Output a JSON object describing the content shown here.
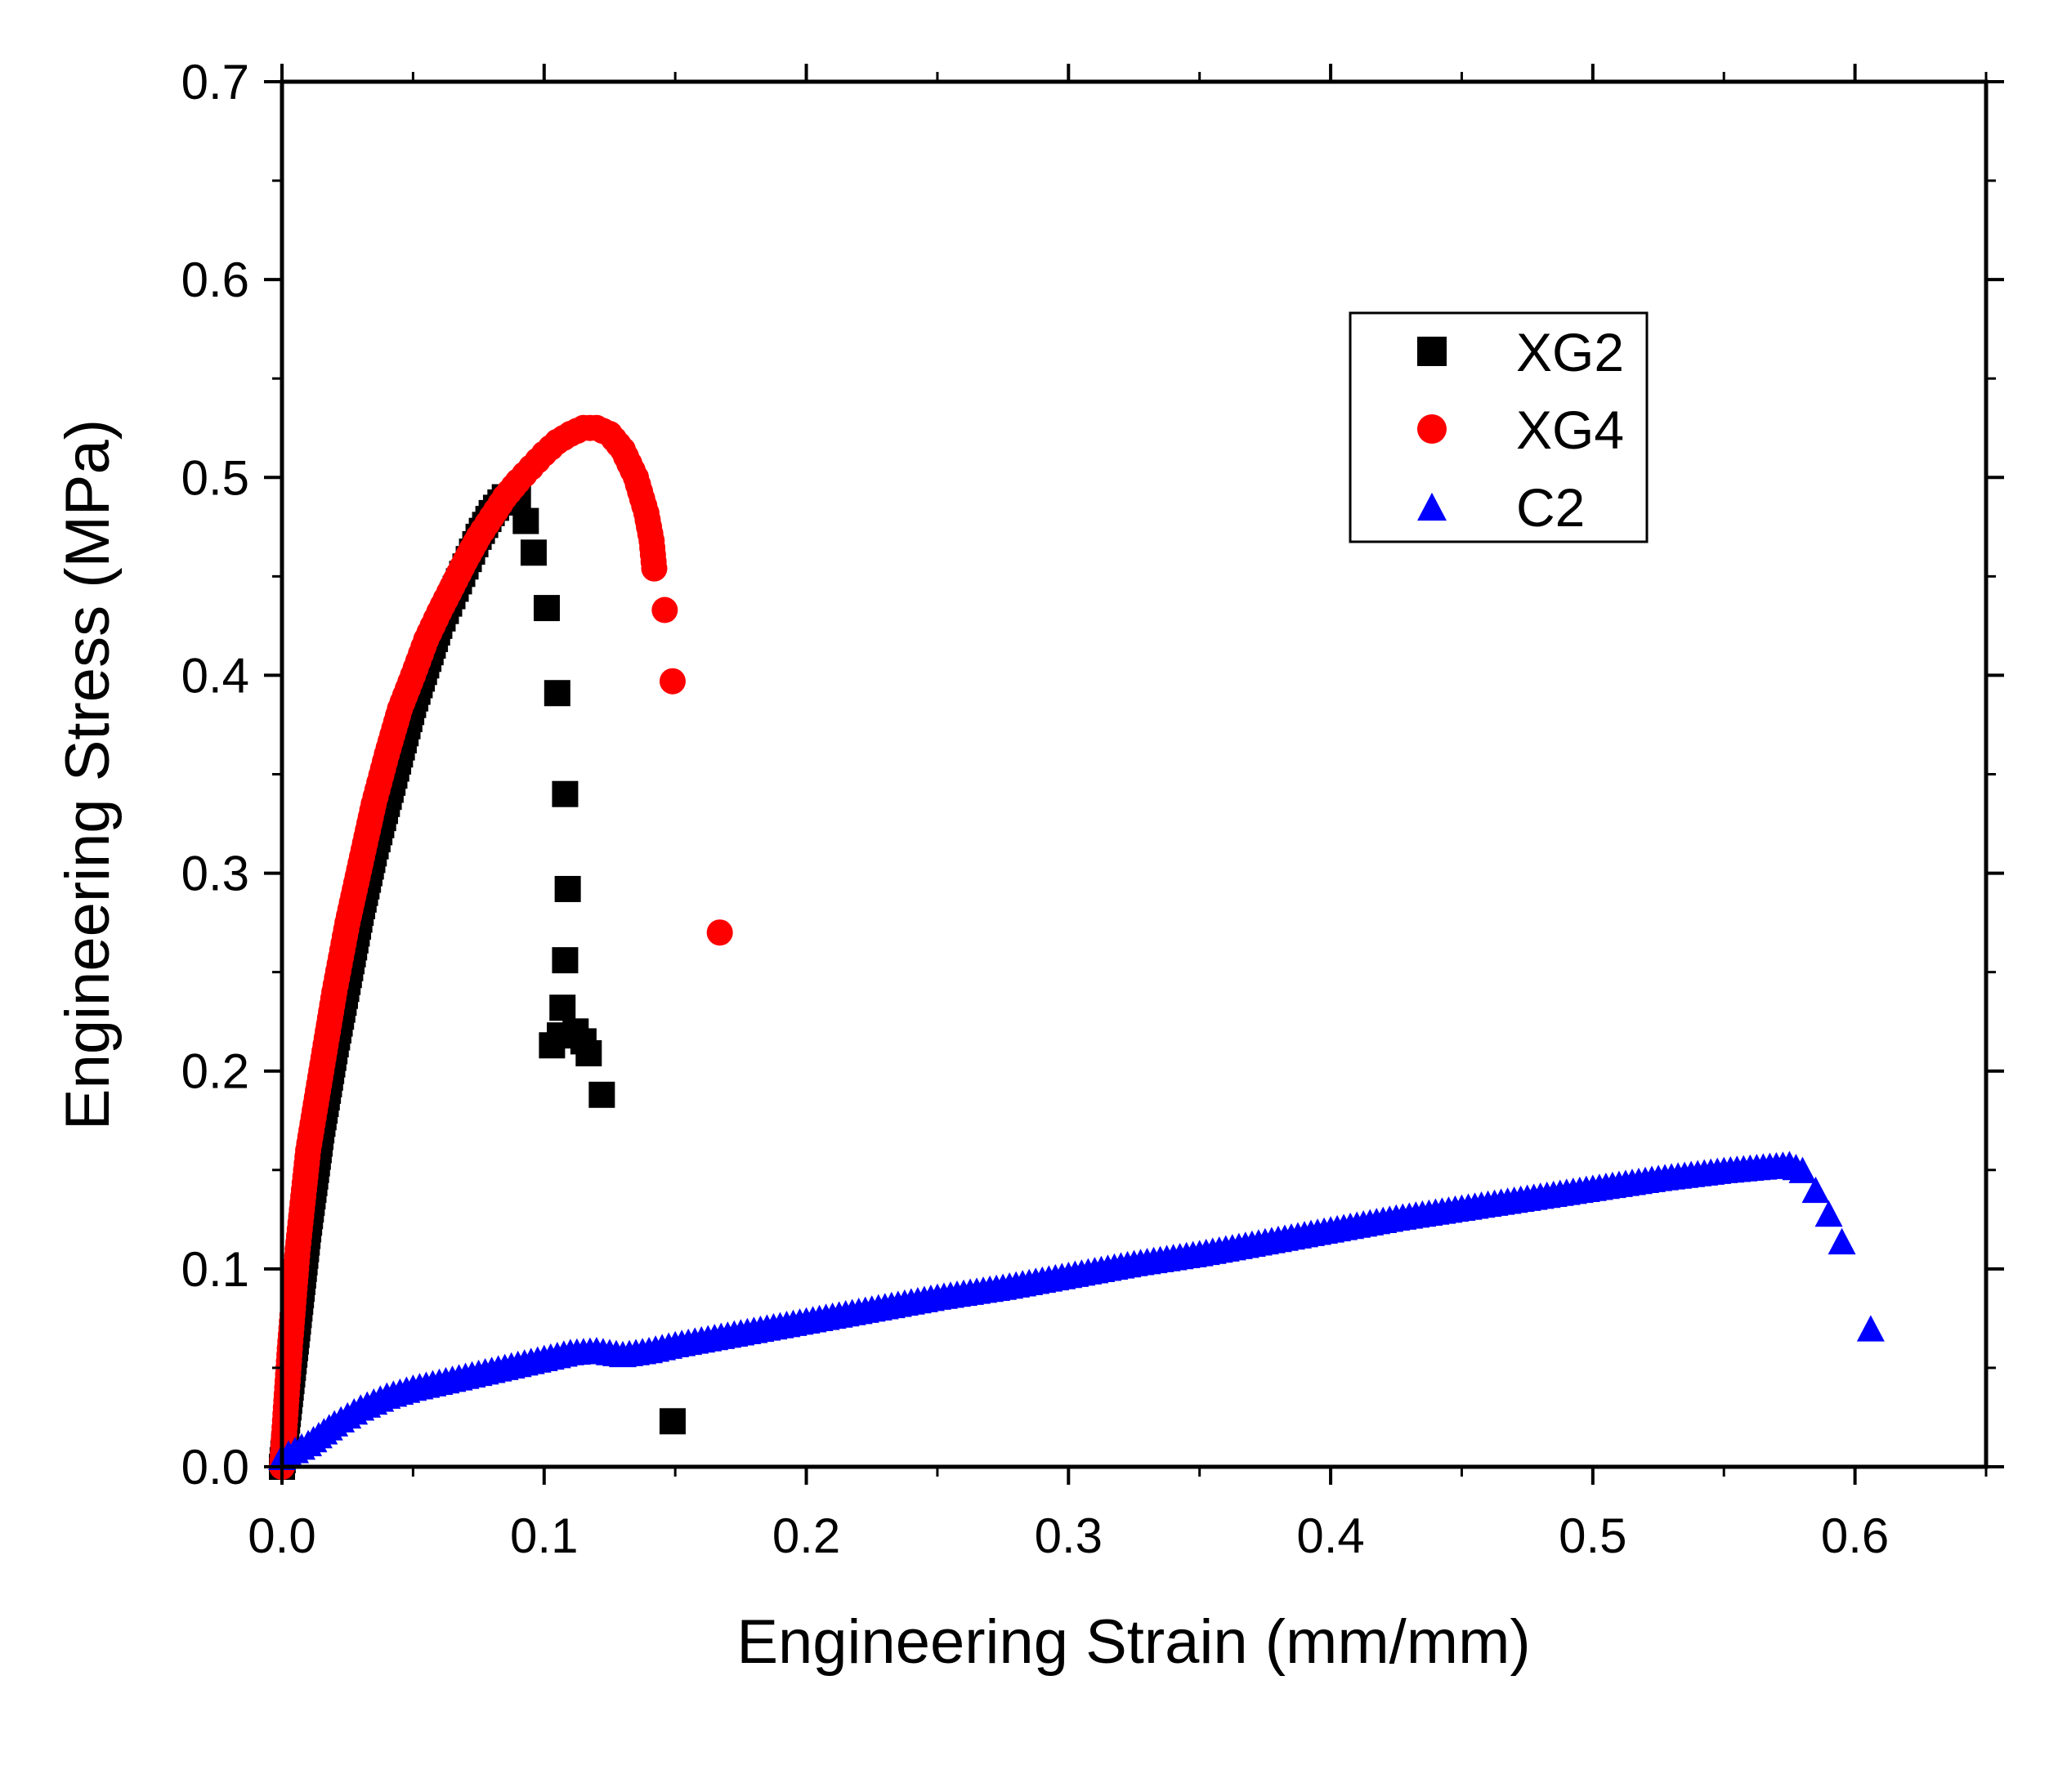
{
  "chart_data": {
    "type": "scatter",
    "title": "",
    "xlabel": "Engineering Strain (mm/mm)",
    "ylabel": "Engineering Stress (MPa)",
    "xlim": [
      0,
      0.65
    ],
    "ylim": [
      0,
      0.7
    ],
    "x_ticks": [
      0.0,
      0.1,
      0.2,
      0.3,
      0.4,
      0.5,
      0.6
    ],
    "x_tick_labels": [
      "0.0",
      "0.1",
      "0.2",
      "0.3",
      "0.4",
      "0.5",
      "0.6"
    ],
    "y_ticks": [
      0.0,
      0.1,
      0.2,
      0.3,
      0.4,
      0.5,
      0.6,
      0.7
    ],
    "y_tick_labels": [
      "0.0",
      "0.1",
      "0.2",
      "0.3",
      "0.4",
      "0.5",
      "0.6",
      "0.7"
    ],
    "grid": false,
    "legend_position": "top-right",
    "series": [
      {
        "name": "XG2",
        "marker": "square",
        "color": "#000000",
        "points": [
          [
            0.0,
            0.0
          ],
          [
            0.005,
            0.06
          ],
          [
            0.01,
            0.12
          ],
          [
            0.015,
            0.17
          ],
          [
            0.02,
            0.21
          ],
          [
            0.025,
            0.245
          ],
          [
            0.03,
            0.28
          ],
          [
            0.035,
            0.31
          ],
          [
            0.04,
            0.335
          ],
          [
            0.045,
            0.36
          ],
          [
            0.05,
            0.385
          ],
          [
            0.055,
            0.405
          ],
          [
            0.06,
            0.425
          ],
          [
            0.065,
            0.44
          ],
          [
            0.07,
            0.455
          ],
          [
            0.075,
            0.47
          ],
          [
            0.08,
            0.482
          ],
          [
            0.085,
            0.49
          ],
          [
            0.09,
            0.49
          ],
          [
            0.093,
            0.478
          ],
          [
            0.096,
            0.462
          ],
          [
            0.101,
            0.434
          ],
          [
            0.105,
            0.391
          ],
          [
            0.108,
            0.34
          ],
          [
            0.109,
            0.292
          ],
          [
            0.108,
            0.256
          ],
          [
            0.107,
            0.232
          ],
          [
            0.103,
            0.213
          ],
          [
            0.106,
            0.218
          ],
          [
            0.112,
            0.22
          ],
          [
            0.115,
            0.215
          ],
          [
            0.117,
            0.209
          ],
          [
            0.122,
            0.188
          ],
          [
            0.149,
            0.023
          ]
        ]
      },
      {
        "name": "XG4",
        "marker": "circle",
        "color": "#ff0000",
        "points": [
          [
            0.0,
            0.0
          ],
          [
            0.003,
            0.06
          ],
          [
            0.006,
            0.11
          ],
          [
            0.01,
            0.16
          ],
          [
            0.015,
            0.2
          ],
          [
            0.02,
            0.24
          ],
          [
            0.025,
            0.275
          ],
          [
            0.03,
            0.305
          ],
          [
            0.035,
            0.335
          ],
          [
            0.04,
            0.36
          ],
          [
            0.045,
            0.383
          ],
          [
            0.05,
            0.4
          ],
          [
            0.055,
            0.418
          ],
          [
            0.06,
            0.432
          ],
          [
            0.065,
            0.445
          ],
          [
            0.07,
            0.458
          ],
          [
            0.075,
            0.47
          ],
          [
            0.08,
            0.48
          ],
          [
            0.085,
            0.49
          ],
          [
            0.09,
            0.498
          ],
          [
            0.095,
            0.505
          ],
          [
            0.1,
            0.512
          ],
          [
            0.105,
            0.518
          ],
          [
            0.11,
            0.522
          ],
          [
            0.115,
            0.525
          ],
          [
            0.12,
            0.525
          ],
          [
            0.125,
            0.522
          ],
          [
            0.13,
            0.514
          ],
          [
            0.135,
            0.5
          ],
          [
            0.139,
            0.482
          ],
          [
            0.141,
            0.468
          ],
          [
            0.142,
            0.454
          ],
          [
            0.146,
            0.433
          ],
          [
            0.149,
            0.397
          ],
          [
            0.167,
            0.27
          ]
        ]
      },
      {
        "name": "C2",
        "marker": "triangle",
        "color": "#0000ff",
        "points": [
          [
            0.0,
            0.005
          ],
          [
            0.01,
            0.012
          ],
          [
            0.02,
            0.022
          ],
          [
            0.03,
            0.03
          ],
          [
            0.04,
            0.036
          ],
          [
            0.05,
            0.04
          ],
          [
            0.06,
            0.043
          ],
          [
            0.07,
            0.046
          ],
          [
            0.08,
            0.049
          ],
          [
            0.09,
            0.052
          ],
          [
            0.1,
            0.055
          ],
          [
            0.11,
            0.058
          ],
          [
            0.12,
            0.059
          ],
          [
            0.13,
            0.057
          ],
          [
            0.14,
            0.059
          ],
          [
            0.15,
            0.062
          ],
          [
            0.175,
            0.068
          ],
          [
            0.2,
            0.074
          ],
          [
            0.225,
            0.08
          ],
          [
            0.25,
            0.086
          ],
          [
            0.275,
            0.091
          ],
          [
            0.3,
            0.097
          ],
          [
            0.325,
            0.103
          ],
          [
            0.35,
            0.108
          ],
          [
            0.375,
            0.114
          ],
          [
            0.4,
            0.12
          ],
          [
            0.425,
            0.126
          ],
          [
            0.45,
            0.131
          ],
          [
            0.475,
            0.136
          ],
          [
            0.5,
            0.141
          ],
          [
            0.525,
            0.146
          ],
          [
            0.55,
            0.15
          ],
          [
            0.575,
            0.153
          ],
          [
            0.58,
            0.15
          ],
          [
            0.585,
            0.14
          ],
          [
            0.59,
            0.128
          ],
          [
            0.595,
            0.114
          ],
          [
            0.606,
            0.07
          ]
        ]
      }
    ]
  }
}
